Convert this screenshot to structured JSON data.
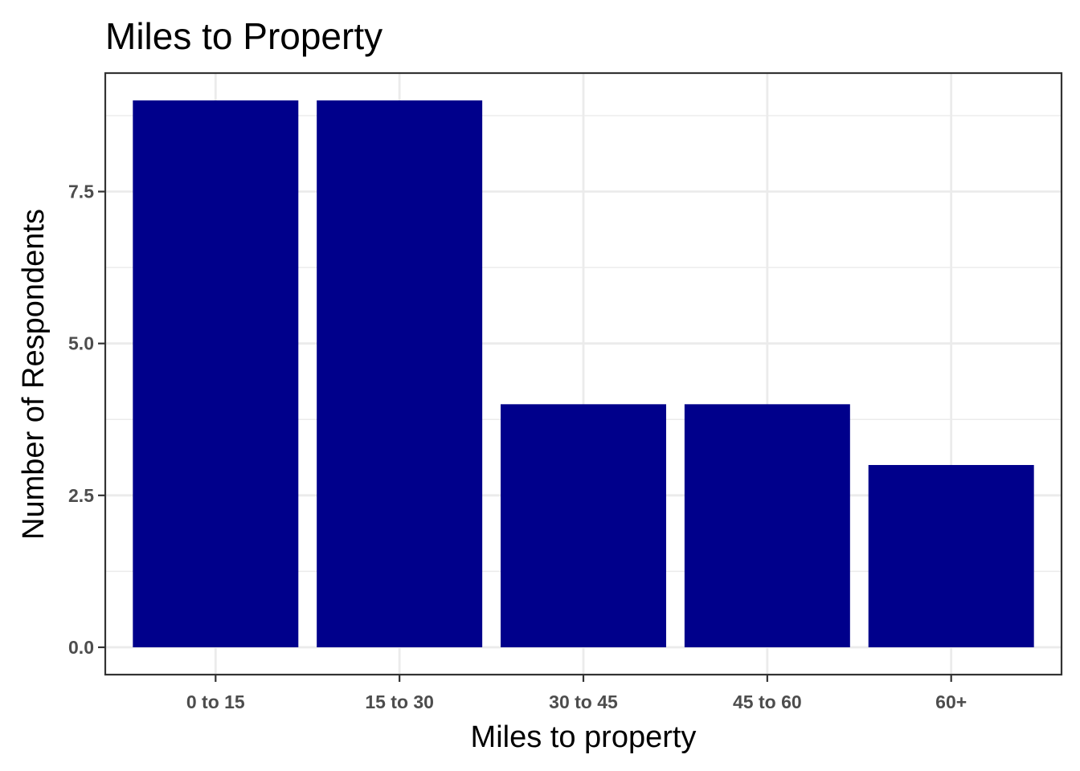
{
  "chart_data": {
    "type": "bar",
    "title": "Miles to Property",
    "xlabel": "Miles to property",
    "ylabel": "Number of Respondents",
    "categories": [
      "0 to 15",
      "15 to 30",
      "30 to 45",
      "45 to 60",
      "60+"
    ],
    "values": [
      9,
      9,
      4,
      4,
      3
    ],
    "ylim": [
      -0.45,
      9.45
    ],
    "yticks": [
      0,
      2.5,
      5,
      7.5
    ],
    "ytick_labels": [
      "0.0",
      "2.5",
      "5.0",
      "7.5"
    ],
    "grid": true,
    "bar_color": "#00008b"
  }
}
